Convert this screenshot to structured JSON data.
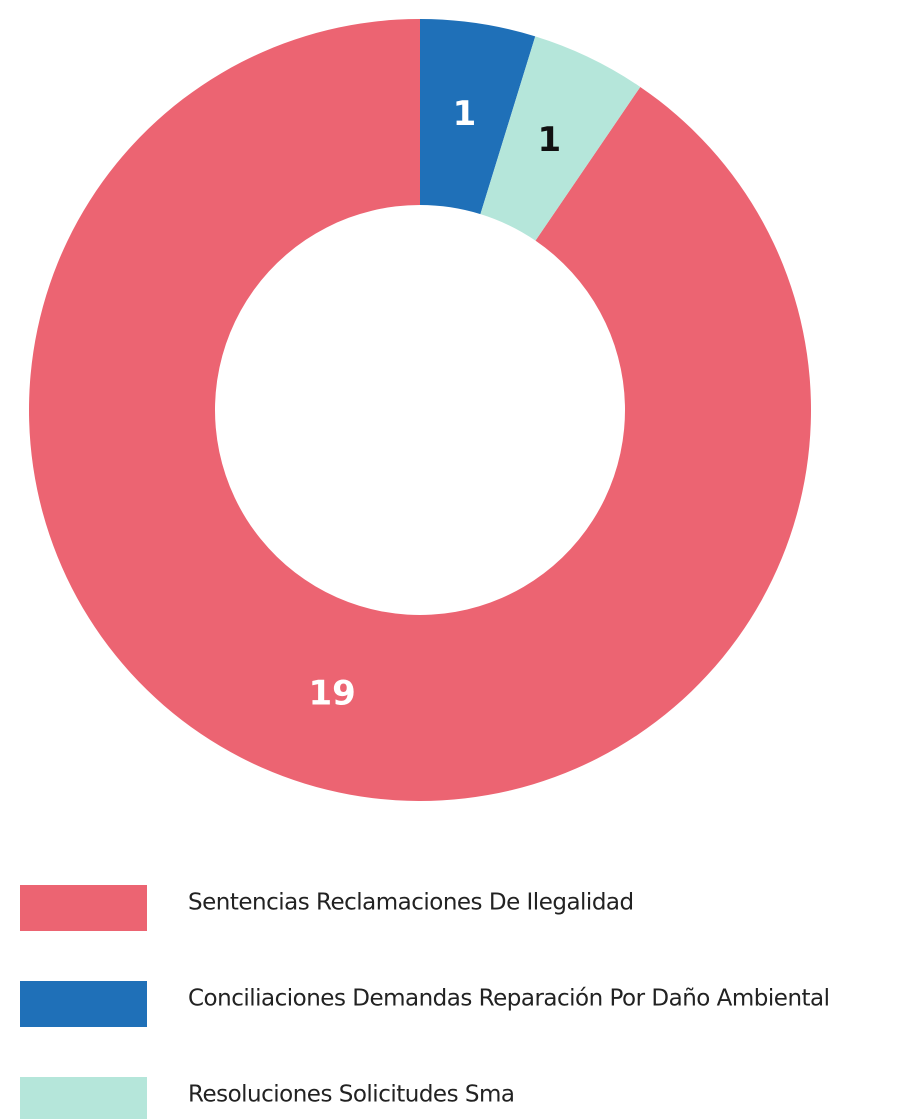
{
  "chart_data": {
    "type": "donut",
    "categories": [
      "Sentencias Reclamaciones De Ilegalidad",
      "Conciliaciones Demandas Reparación Por Daño Ambiental",
      "Resoluciones Solicitudes Sma"
    ],
    "values": [
      19,
      1,
      1
    ],
    "colors": [
      "#ec6472",
      "#1f70b8",
      "#b5e6da"
    ],
    "legend": "bottom"
  }
}
